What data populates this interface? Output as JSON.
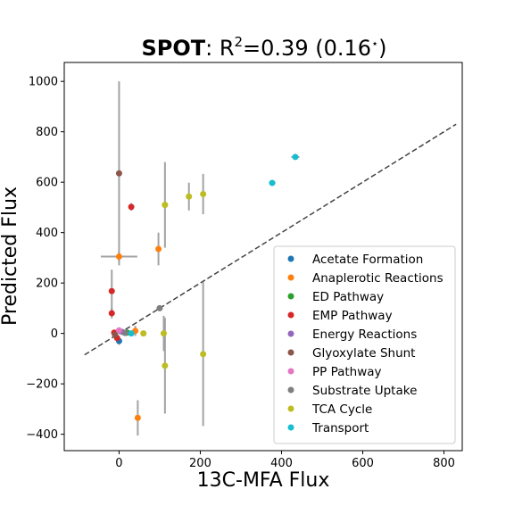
{
  "chart_data": {
    "type": "scatter",
    "title": {
      "bold": "SPOT",
      "rest": ": R",
      "sup": "2",
      "tail": "=0.39 (0.16",
      "star": "⋆",
      "close": ")"
    },
    "xlabel": "13C-MFA Flux",
    "ylabel": "Predicted Flux",
    "xlim": [
      -135,
      845
    ],
    "ylim": [
      -465,
      1075
    ],
    "xticks": [
      0,
      200,
      400,
      600,
      800
    ],
    "yticks": [
      -400,
      -200,
      0,
      200,
      400,
      600,
      800,
      1000
    ],
    "grid": false,
    "legend_position": "lower-right",
    "identity_line": {
      "x": [
        -85,
        830
      ],
      "y": [
        -85,
        830
      ],
      "style": "dashed",
      "color": "#444444"
    },
    "series": [
      {
        "name": "Acetate Formation",
        "color": "#1f77b4",
        "points": [
          {
            "x": 0,
            "y": -30,
            "yerr": 15
          }
        ]
      },
      {
        "name": "Anaplerotic Reactions",
        "color": "#ff7f0e",
        "points": [
          {
            "x": 0,
            "y": 305,
            "xerr": 45,
            "yerr": 20
          },
          {
            "x": 97,
            "y": 335,
            "yerr": 65
          },
          {
            "x": 40,
            "y": 10,
            "yerr": 20
          },
          {
            "x": 46,
            "y": -335,
            "yerr": 70
          }
        ]
      },
      {
        "name": "ED Pathway",
        "color": "#2ca02c",
        "points": [
          {
            "x": 20,
            "y": 3,
            "yerr": 5
          }
        ]
      },
      {
        "name": "EMP Pathway",
        "color": "#d62728",
        "points": [
          {
            "x": 30,
            "y": 502,
            "yerr": 15
          },
          {
            "x": -18,
            "y": 168,
            "yerr": 85
          },
          {
            "x": -18,
            "y": 80,
            "yerr": 20
          },
          {
            "x": -12,
            "y": 3,
            "yerr": 10
          },
          {
            "x": -5,
            "y": -18,
            "yerr": 10
          }
        ]
      },
      {
        "name": "Energy Reactions",
        "color": "#9467bd",
        "points": [
          {
            "x": 8,
            "y": 6,
            "yerr": 10
          }
        ]
      },
      {
        "name": "Glyoxylate Shunt",
        "color": "#8c564b",
        "points": [
          {
            "x": 0,
            "y": 635,
            "yerr": 365
          },
          {
            "x": -10,
            "y": -5,
            "yerr": 15
          }
        ]
      },
      {
        "name": "PP Pathway",
        "color": "#e377c2",
        "points": [
          {
            "x": 0,
            "y": 12,
            "yerr": 10
          }
        ]
      },
      {
        "name": "Substrate Uptake",
        "color": "#7f7f7f",
        "points": [
          {
            "x": 100,
            "y": 100,
            "yerr": 5
          },
          {
            "x": 15,
            "y": 2,
            "yerr": 5
          }
        ]
      },
      {
        "name": "TCA Cycle",
        "color": "#bcbd22",
        "points": [
          {
            "x": 113,
            "y": 510,
            "yerr": 170
          },
          {
            "x": 172,
            "y": 543,
            "yerr": 55
          },
          {
            "x": 207,
            "y": 553,
            "yerr": 80
          },
          {
            "x": 60,
            "y": 0,
            "yerr": 5
          },
          {
            "x": 110,
            "y": 0,
            "yerr": 70
          },
          {
            "x": 113,
            "y": -128,
            "yerr": 190
          },
          {
            "x": 207,
            "y": -82,
            "yerr": 285
          }
        ]
      },
      {
        "name": "Transport",
        "color": "#17becf",
        "points": [
          {
            "x": 377,
            "y": 597,
            "xerr": 8,
            "yerr": 8
          },
          {
            "x": 434,
            "y": 700,
            "xerr": 10,
            "yerr": 5
          },
          {
            "x": 30,
            "y": 0,
            "yerr": 5
          }
        ]
      }
    ]
  }
}
